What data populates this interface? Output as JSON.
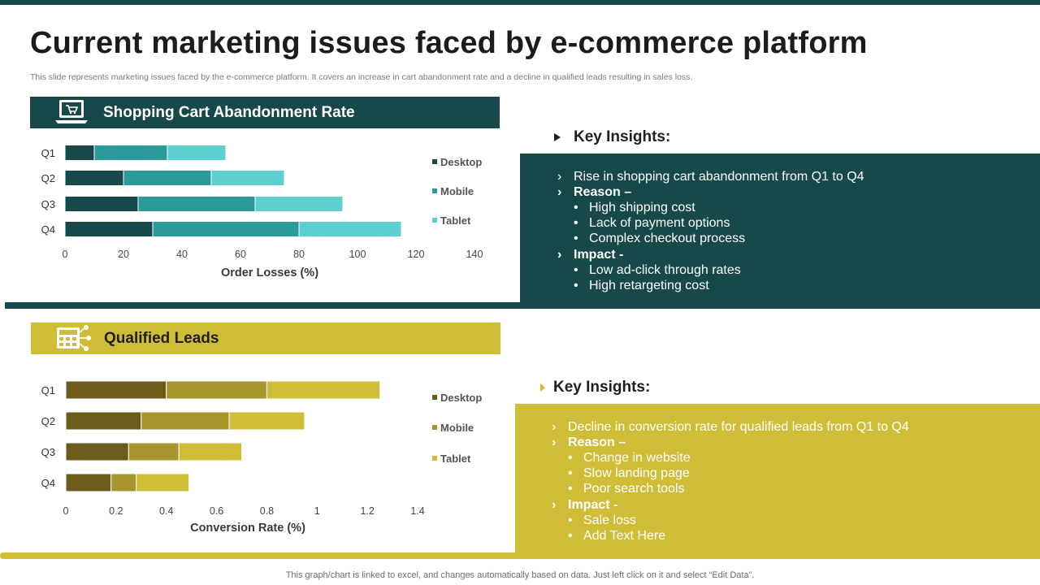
{
  "title": "Current marketing issues faced by e-commerce platform",
  "subtitle": "This slide represents marketing issues faced by the e-commerce platform. It covers an increase in cart abandonment rate and a decline in qualified leads resulting in sales loss.",
  "colors": {
    "dark_teal": "#17494a",
    "teal": "#2a9b98",
    "light_teal": "#5ccfd0",
    "olive_dark": "#6b5c1b",
    "olive_mid": "#a6962c",
    "olive_light": "#cfbd37"
  },
  "cart_section": {
    "header": "Shopping Cart Abandonment Rate",
    "icon": "laptop-cart-icon",
    "insights_title": "Key Insights:",
    "insights": {
      "point1": "Rise in shopping cart abandonment from Q1 to Q4",
      "reason_label": "Reason –",
      "reasons": [
        "High shipping cost",
        "Lack of payment options",
        "Complex checkout process"
      ],
      "impact_label": "Impact -",
      "impacts": [
        "Low ad-click through  rates",
        "High retargeting cost"
      ]
    }
  },
  "leads_section": {
    "header": "Qualified Leads",
    "icon": "calculator-network-icon",
    "insights_title": "Key Insights:",
    "insights": {
      "point1": "Decline in conversion rate for qualified leads from Q1 to Q4",
      "reason_label": "Reason –",
      "reasons": [
        "Change in website",
        "Slow landing page",
        "Poor search tools"
      ],
      "impact_label": "Impact -",
      "impacts": [
        "Sale loss",
        "Add Text Here"
      ]
    }
  },
  "footer": "This graph/chart is linked to excel,  and changes automatically based on data. Just left click on it and select “Edit Data”.",
  "chart_data": [
    {
      "type": "bar",
      "orientation": "horizontal",
      "stacked": true,
      "categories": [
        "Q1",
        "Q2",
        "Q3",
        "Q4"
      ],
      "series": [
        {
          "name": "Desktop",
          "values": [
            10,
            20,
            25,
            30
          ],
          "color": "#17494a"
        },
        {
          "name": "Mobile",
          "values": [
            25,
            30,
            40,
            50
          ],
          "color": "#2a9b98"
        },
        {
          "name": "Tablet",
          "values": [
            20,
            25,
            30,
            35
          ],
          "color": "#5ccfd0"
        }
      ],
      "xlabel": "Order Losses  (%)",
      "xlim": [
        0,
        140
      ],
      "xticks": [
        "0",
        "20",
        "40",
        "60",
        "80",
        "100",
        "120",
        "140"
      ],
      "legend": "right"
    },
    {
      "type": "bar",
      "orientation": "horizontal",
      "stacked": true,
      "categories": [
        "Q1",
        "Q2",
        "Q3",
        "Q4"
      ],
      "series": [
        {
          "name": "Desktop",
          "values": [
            0.4,
            0.3,
            0.25,
            0.18
          ],
          "color": "#6b5c1b"
        },
        {
          "name": "Mobile",
          "values": [
            0.4,
            0.35,
            0.2,
            0.1
          ],
          "color": "#a6962c"
        },
        {
          "name": "Tablet",
          "values": [
            0.45,
            0.3,
            0.25,
            0.21
          ],
          "color": "#cfbd37"
        }
      ],
      "xlabel": "Conversion Rate (%)",
      "xlim": [
        0,
        1.4
      ],
      "xticks": [
        "0",
        "0.2",
        "0.4",
        "0.6",
        "0.8",
        "1",
        "1.2",
        "1.4"
      ],
      "legend": "right"
    }
  ]
}
